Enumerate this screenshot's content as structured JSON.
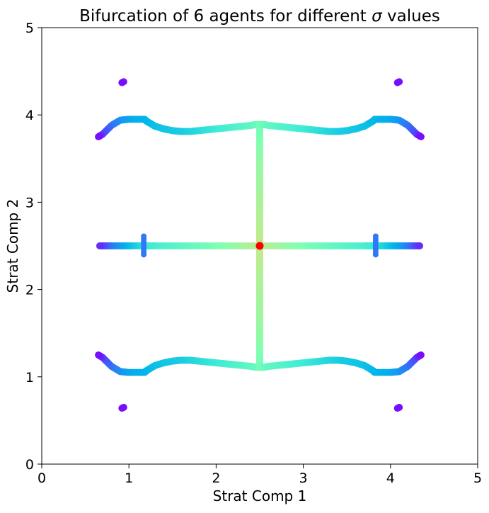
{
  "chart_data": {
    "type": "scatter",
    "title_prefix": "Bifurcation of 6 agents for different ",
    "title_symbol": "σ",
    "title_suffix": " values",
    "xlabel": "Strat Comp 1",
    "ylabel": "Strat Comp 2",
    "xlim": [
      0,
      5
    ],
    "ylim": [
      0,
      5
    ],
    "xticks": [
      "0",
      "1",
      "2",
      "3",
      "4",
      "5"
    ],
    "yticks": [
      "0",
      "1",
      "2",
      "3",
      "4",
      "5"
    ],
    "grid": false,
    "legend": "none",
    "colormap": "rainbow",
    "colormap_stops": [
      "#8000ff",
      "#4062fa",
      "#00b5eb",
      "#40ecd4",
      "#80ffb4",
      "#c0eb8d",
      "#ffb360",
      "#ff0000"
    ],
    "highlight_point": {
      "x": 2.5,
      "y": 2.5,
      "color": "#ff0000"
    },
    "series": [
      {
        "x": [
          2.5,
          2.5,
          2.5,
          2.5,
          2.5,
          2.5,
          2.5,
          2.5,
          2.5,
          2.5,
          2.5,
          2.5,
          2.5,
          2.5,
          2.45,
          2.4,
          2.3,
          2.2,
          2.1,
          2.0,
          1.9,
          1.8,
          1.7,
          1.6,
          1.5,
          1.4,
          1.3,
          1.25,
          1.2,
          1.18,
          1.0,
          0.9,
          0.8,
          0.7,
          0.65
        ],
        "y": [
          2.5,
          2.6,
          2.7,
          2.8,
          2.9,
          3.0,
          3.1,
          3.2,
          3.3,
          3.4,
          3.5,
          3.6,
          3.75,
          3.89,
          3.89,
          3.88,
          3.87,
          3.86,
          3.85,
          3.84,
          3.83,
          3.82,
          3.81,
          3.81,
          3.82,
          3.84,
          3.87,
          3.9,
          3.93,
          3.95,
          3.95,
          3.94,
          3.88,
          3.78,
          3.75
        ],
        "c": [
          0.72,
          0.71,
          0.7,
          0.69,
          0.68,
          0.67,
          0.66,
          0.65,
          0.64,
          0.63,
          0.62,
          0.6,
          0.57,
          0.55,
          0.53,
          0.51,
          0.49,
          0.47,
          0.45,
          0.43,
          0.41,
          0.39,
          0.37,
          0.35,
          0.34,
          0.33,
          0.32,
          0.31,
          0.3,
          0.29,
          0.27,
          0.24,
          0.18,
          0.1,
          0.02
        ]
      }
    ]
  }
}
